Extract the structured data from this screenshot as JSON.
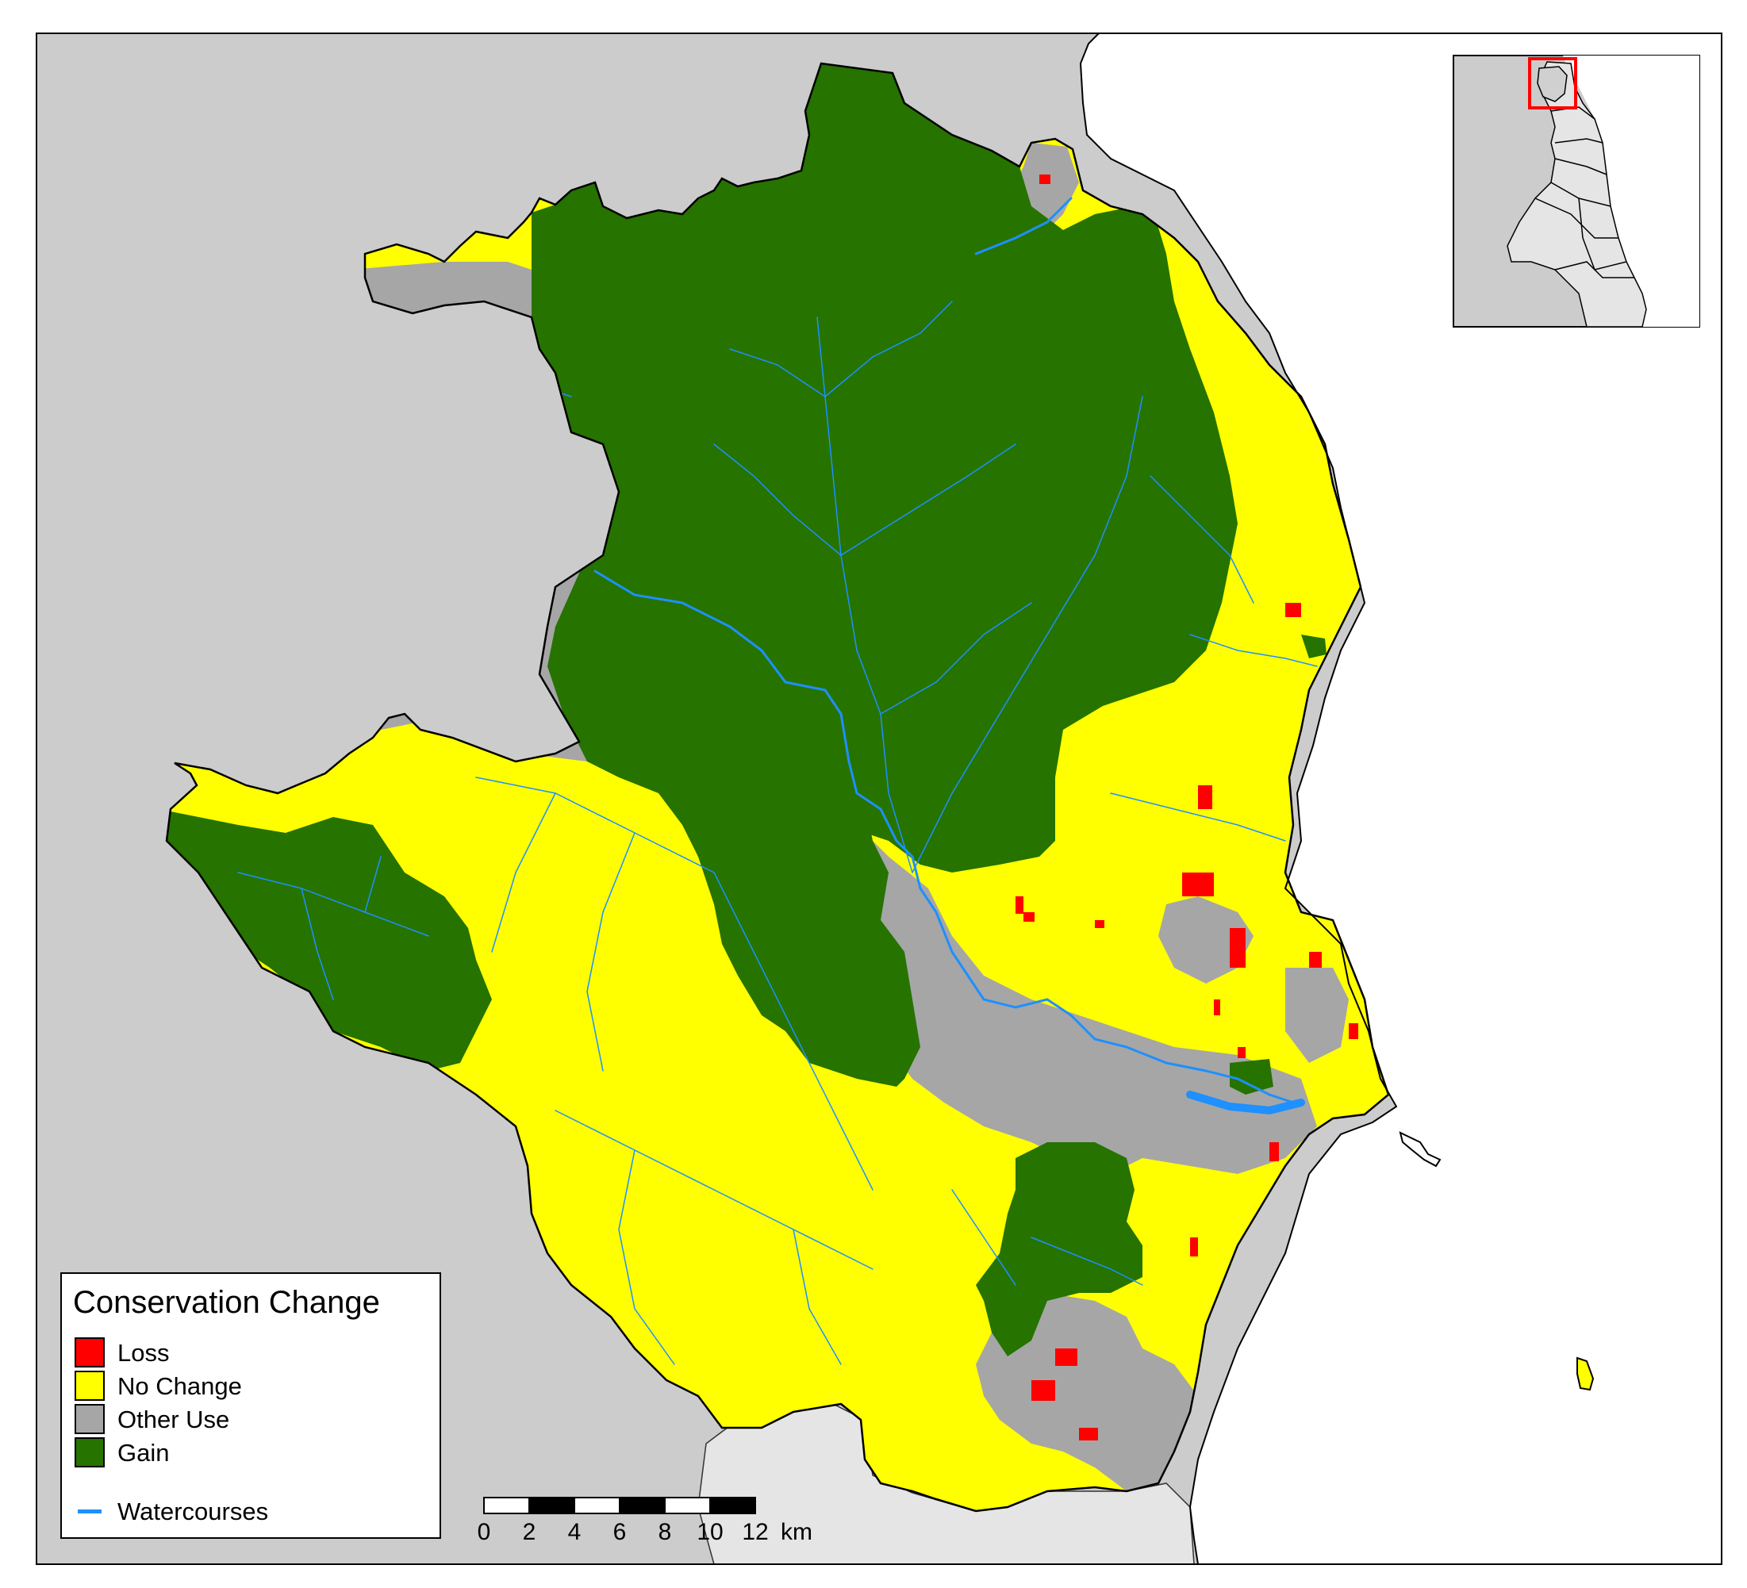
{
  "legend": {
    "title": "Conservation Change",
    "items": [
      {
        "label": "Loss",
        "color": "#ff0000"
      },
      {
        "label": "No Change",
        "color": "#ffff00"
      },
      {
        "label": "Other Use",
        "color": "#a6a6a6"
      },
      {
        "label": "Gain",
        "color": "#267300"
      }
    ],
    "watercourses_label": "Watercourses",
    "watercourses_color": "#1e90ff"
  },
  "scale_bar": {
    "ticks": [
      "0",
      "2",
      "4",
      "6",
      "8",
      "10",
      "12"
    ],
    "unit": "km"
  },
  "colors": {
    "background_land": "#cccccc",
    "sea": "#ffffff",
    "inset_region": "#e5e5e5",
    "inset_highlight": "#ff0000"
  }
}
